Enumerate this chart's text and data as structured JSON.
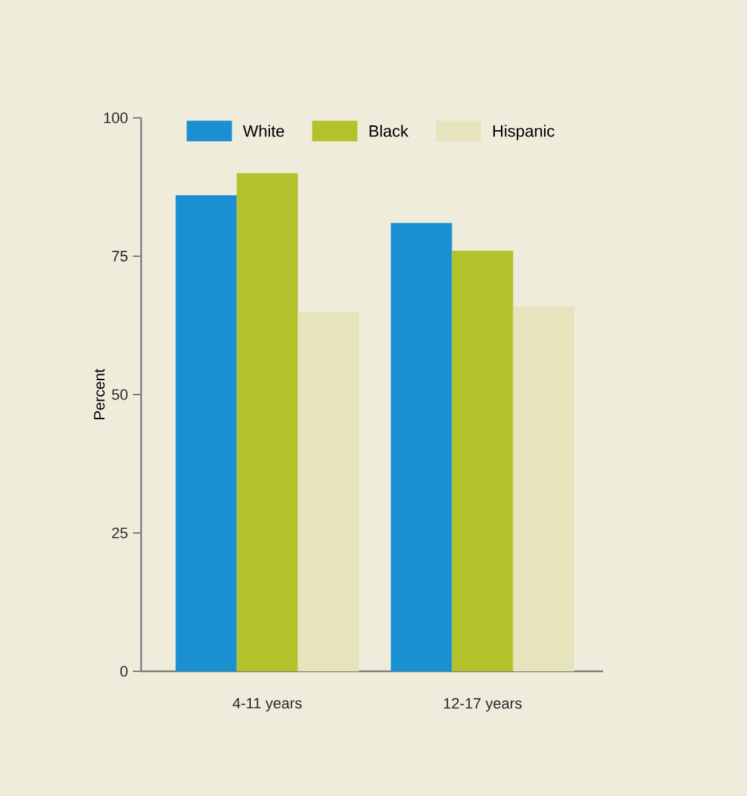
{
  "chart_data": {
    "type": "bar",
    "ylabel": "Percent",
    "categories": [
      "4-11 years",
      "12-17 years"
    ],
    "series": [
      {
        "name": "White",
        "color": "#1a8fd2",
        "values": [
          86,
          81
        ]
      },
      {
        "name": "Black",
        "color": "#b3c12a",
        "values": [
          90,
          76
        ]
      },
      {
        "name": "Hispanic",
        "color": "#e6e4bd",
        "values": [
          65,
          66
        ]
      }
    ],
    "ylim": [
      0,
      100
    ],
    "yticks": [
      0,
      25,
      50,
      75,
      100
    ],
    "grid": false,
    "legend": "top"
  }
}
